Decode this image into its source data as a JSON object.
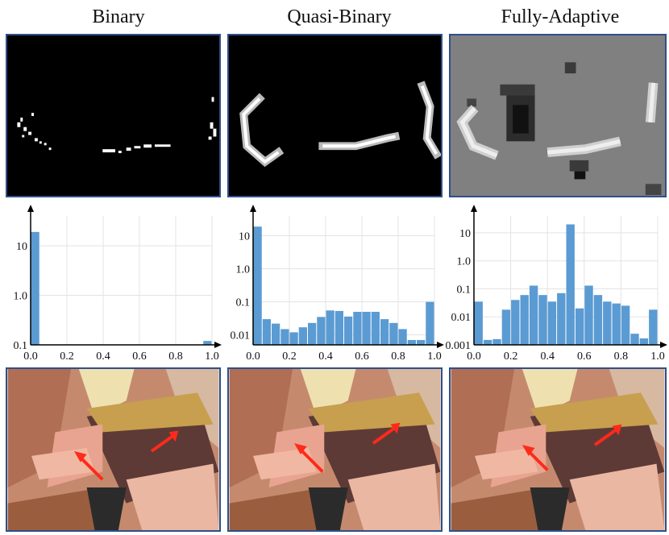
{
  "columns": [
    {
      "title": "Binary"
    },
    {
      "title": "Quasi-Binary"
    },
    {
      "title": "Fully-Adaptive"
    }
  ],
  "colors": {
    "bar": "#5b9bd3",
    "panel_border": "#2f4f8a",
    "arrow": "#ff2a1a",
    "grid": "#e3e3e3"
  },
  "chart_data": [
    {
      "type": "bar",
      "title": "",
      "xlabel": "",
      "ylabel": "",
      "scale": "log",
      "bin_width": 0.05,
      "x_ticks": [
        "0.0",
        "0.2",
        "0.4",
        "0.6",
        "0.8",
        "1.0"
      ],
      "y_ticks": [
        {
          "v": 0.1,
          "label": "0.1"
        },
        {
          "v": 1,
          "label": "1.0"
        },
        {
          "v": 10,
          "label": "10"
        }
      ],
      "ylim": [
        0.1,
        40
      ],
      "x": [
        0.0,
        0.05,
        0.1,
        0.15,
        0.2,
        0.25,
        0.3,
        0.35,
        0.4,
        0.45,
        0.5,
        0.55,
        0.6,
        0.65,
        0.7,
        0.75,
        0.8,
        0.85,
        0.9,
        0.95
      ],
      "values": [
        19,
        0,
        0,
        0,
        0,
        0,
        0,
        0,
        0,
        0,
        0,
        0,
        0,
        0,
        0,
        0,
        0,
        0,
        0,
        0.12
      ]
    },
    {
      "type": "bar",
      "title": "",
      "xlabel": "",
      "ylabel": "",
      "scale": "log",
      "bin_width": 0.05,
      "x_ticks": [
        "0.0",
        "0.2",
        "0.4",
        "0.6",
        "0.8",
        "1.0"
      ],
      "y_ticks": [
        {
          "v": 0.01,
          "label": "0.01"
        },
        {
          "v": 0.1,
          "label": "0.1"
        },
        {
          "v": 1,
          "label": "1.0"
        },
        {
          "v": 10,
          "label": "10"
        }
      ],
      "ylim": [
        0.005,
        40
      ],
      "x": [
        0.0,
        0.05,
        0.1,
        0.15,
        0.2,
        0.25,
        0.3,
        0.35,
        0.4,
        0.45,
        0.5,
        0.55,
        0.6,
        0.65,
        0.7,
        0.75,
        0.8,
        0.85,
        0.9,
        0.95
      ],
      "values": [
        19,
        0.03,
        0.022,
        0.015,
        0.012,
        0.017,
        0.023,
        0.035,
        0.055,
        0.053,
        0.036,
        0.05,
        0.05,
        0.05,
        0.03,
        0.023,
        0.015,
        0.007,
        0.007,
        0.1
      ]
    },
    {
      "type": "bar",
      "title": "",
      "xlabel": "",
      "ylabel": "",
      "scale": "log",
      "bin_width": 0.05,
      "x_ticks": [
        "0.0",
        "0.2",
        "0.4",
        "0.6",
        "0.8",
        "1.0"
      ],
      "y_ticks": [
        {
          "v": 0.001,
          "label": "0.001"
        },
        {
          "v": 0.01,
          "label": "0.01"
        },
        {
          "v": 0.1,
          "label": "0.1"
        },
        {
          "v": 1,
          "label": "1.0"
        },
        {
          "v": 10,
          "label": "10"
        }
      ],
      "ylim": [
        0.001,
        40
      ],
      "x": [
        0.0,
        0.05,
        0.1,
        0.15,
        0.2,
        0.25,
        0.3,
        0.35,
        0.4,
        0.45,
        0.5,
        0.55,
        0.6,
        0.65,
        0.7,
        0.75,
        0.8,
        0.85,
        0.9,
        0.95
      ],
      "values": [
        0.035,
        0.0015,
        0.0016,
        0.018,
        0.04,
        0.06,
        0.13,
        0.06,
        0.035,
        0.07,
        20,
        0.02,
        0.13,
        0.06,
        0.035,
        0.03,
        0.025,
        0.0025,
        0.0017,
        0.018
      ]
    }
  ]
}
